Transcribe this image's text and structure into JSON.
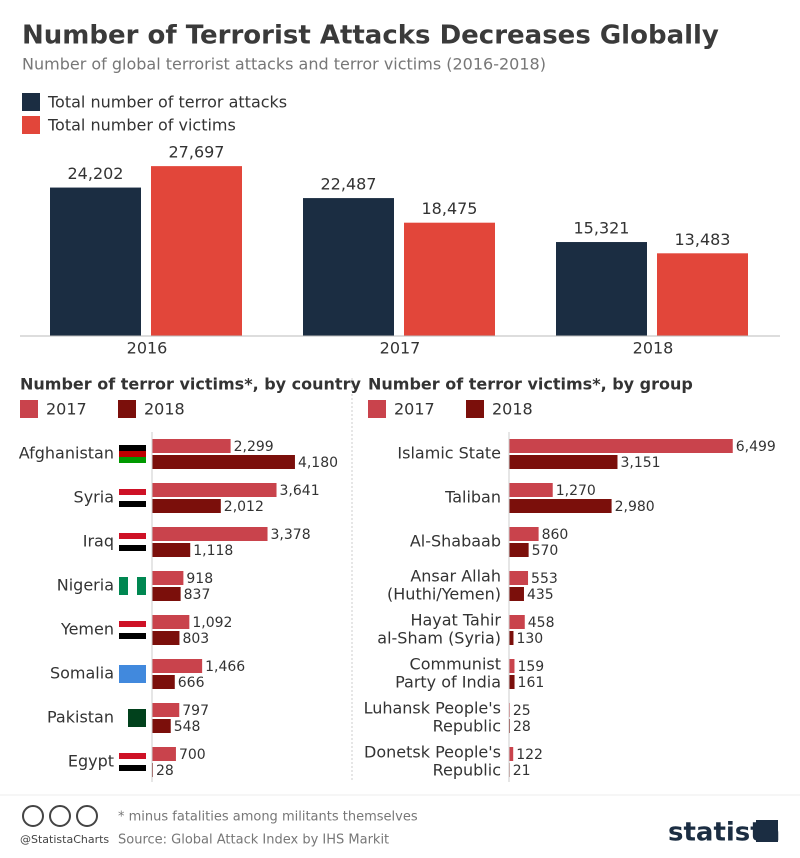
{
  "title": "Number of Terrorist Attacks Decreases Globally",
  "subtitle": "Number of global terrorist attacks and terror victims (2016-2018)",
  "chart_data": [
    {
      "type": "bar",
      "categories": [
        "2016",
        "2017",
        "2018"
      ],
      "ylim": [
        0,
        30000
      ],
      "series": [
        {
          "name": "Total number of terror attacks",
          "color": "#1b2d42",
          "values": [
            24202,
            22487,
            15321
          ],
          "value_labels": [
            "24,202",
            "22,487",
            "15,321"
          ]
        },
        {
          "name": "Total number of victims",
          "color": "#e2463a",
          "values": [
            27697,
            18475,
            13483
          ],
          "value_labels": [
            "27,697",
            "18,475",
            "13,483"
          ]
        }
      ]
    },
    {
      "type": "barh",
      "title": "Number of terror victims*, by country",
      "xlim": [
        0,
        5000
      ],
      "categories": [
        "Afghanistan",
        "Syria",
        "Iraq",
        "Nigeria",
        "Yemen",
        "Somalia",
        "Pakistan",
        "Egypt"
      ],
      "series": [
        {
          "name": "2017",
          "color": "#c9434c",
          "values": [
            2299,
            3641,
            3378,
            918,
            1092,
            1466,
            797,
            700
          ],
          "value_labels": [
            "2,299",
            "3,641",
            "3,378",
            "918",
            "1,092",
            "1,466",
            "797",
            "700"
          ]
        },
        {
          "name": "2018",
          "color": "#7b0f0b",
          "values": [
            4180,
            2012,
            1118,
            837,
            803,
            666,
            548,
            28
          ],
          "value_labels": [
            "4,180",
            "2,012",
            "1,118",
            "837",
            "803",
            "666",
            "548",
            "28"
          ]
        }
      ]
    },
    {
      "type": "barh",
      "title": "Number of terror victims*, by group",
      "xlim": [
        0,
        7000
      ],
      "categories": [
        [
          "Islamic State"
        ],
        [
          "Taliban"
        ],
        [
          "Al-Shabaab"
        ],
        [
          "Ansar Allah",
          "(Huthi/Yemen)"
        ],
        [
          "Hayat Tahir",
          "al-Sham (Syria)"
        ],
        [
          "Communist",
          "Party of India"
        ],
        [
          "Luhansk People's",
          "Republic"
        ],
        [
          "Donetsk People's",
          "Republic"
        ]
      ],
      "series": [
        {
          "name": "2017",
          "color": "#c9434c",
          "values": [
            6499,
            1270,
            860,
            553,
            458,
            159,
            25,
            122
          ],
          "value_labels": [
            "6,499",
            "1,270",
            "860",
            "553",
            "458",
            "159",
            "25",
            "122"
          ]
        },
        {
          "name": "2018",
          "color": "#7b0f0b",
          "values": [
            3151,
            2980,
            570,
            435,
            130,
            161,
            28,
            21
          ],
          "value_labels": [
            "3,151",
            "2,980",
            "570",
            "435",
            "130",
            "161",
            "28",
            "21"
          ]
        }
      ]
    }
  ],
  "footnote": "* minus fatalities among militants themselves",
  "source": "Source: Global Attack Index by IHS Markit",
  "credit": "@StatistaCharts",
  "brand": "statista"
}
